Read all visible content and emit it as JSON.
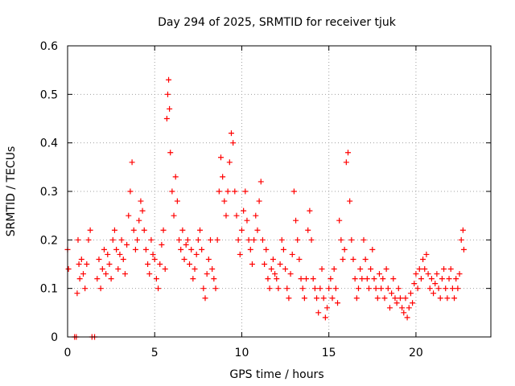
{
  "chart_data": {
    "type": "scatter",
    "title": "Day 294 of 2025, SRMTID for receiver tjuk",
    "xlabel": "GPS time / hours",
    "ylabel": "SRMTID / TECUs",
    "xlim": [
      0,
      24.3
    ],
    "ylim": [
      0,
      0.6
    ],
    "xticks": [
      0,
      5,
      10,
      15,
      20
    ],
    "yticks": [
      0,
      0.1,
      0.2,
      0.3,
      0.4,
      0.5,
      0.6
    ],
    "ytick_labels": [
      "0",
      "0.1",
      "0.2",
      "0.3",
      "0.4",
      "0.5",
      "0.6"
    ],
    "grid": true,
    "marker": "+",
    "color": "#ff0000",
    "series": [
      {
        "name": "SRMTID",
        "points": [
          [
            0.0,
            0.18
          ],
          [
            0.05,
            0.14
          ],
          [
            0.4,
            0.0
          ],
          [
            0.5,
            0.0
          ],
          [
            0.55,
            0.09
          ],
          [
            0.6,
            0.2
          ],
          [
            0.65,
            0.15
          ],
          [
            0.7,
            0.12
          ],
          [
            0.8,
            0.16
          ],
          [
            0.9,
            0.13
          ],
          [
            1.0,
            0.1
          ],
          [
            1.1,
            0.15
          ],
          [
            1.2,
            0.2
          ],
          [
            1.3,
            0.22
          ],
          [
            1.4,
            0.0
          ],
          [
            1.55,
            0.0
          ],
          [
            1.7,
            0.12
          ],
          [
            1.8,
            0.16
          ],
          [
            1.9,
            0.1
          ],
          [
            2.0,
            0.14
          ],
          [
            2.1,
            0.18
          ],
          [
            2.2,
            0.13
          ],
          [
            2.3,
            0.17
          ],
          [
            2.4,
            0.15
          ],
          [
            2.5,
            0.12
          ],
          [
            2.6,
            0.2
          ],
          [
            2.7,
            0.22
          ],
          [
            2.8,
            0.18
          ],
          [
            2.9,
            0.14
          ],
          [
            3.0,
            0.17
          ],
          [
            3.1,
            0.2
          ],
          [
            3.2,
            0.16
          ],
          [
            3.3,
            0.13
          ],
          [
            3.4,
            0.19
          ],
          [
            3.5,
            0.25
          ],
          [
            3.6,
            0.3
          ],
          [
            3.7,
            0.36
          ],
          [
            3.8,
            0.22
          ],
          [
            3.9,
            0.18
          ],
          [
            4.0,
            0.2
          ],
          [
            4.1,
            0.24
          ],
          [
            4.2,
            0.28
          ],
          [
            4.3,
            0.26
          ],
          [
            4.4,
            0.22
          ],
          [
            4.5,
            0.18
          ],
          [
            4.6,
            0.15
          ],
          [
            4.7,
            0.13
          ],
          [
            4.8,
            0.2
          ],
          [
            4.9,
            0.17
          ],
          [
            5.0,
            0.16
          ],
          [
            5.1,
            0.12
          ],
          [
            5.2,
            0.1
          ],
          [
            5.3,
            0.15
          ],
          [
            5.4,
            0.19
          ],
          [
            5.5,
            0.22
          ],
          [
            5.6,
            0.14
          ],
          [
            5.7,
            0.45
          ],
          [
            5.75,
            0.5
          ],
          [
            5.8,
            0.53
          ],
          [
            5.85,
            0.47
          ],
          [
            5.9,
            0.38
          ],
          [
            6.0,
            0.3
          ],
          [
            6.1,
            0.25
          ],
          [
            6.2,
            0.33
          ],
          [
            6.3,
            0.28
          ],
          [
            6.4,
            0.2
          ],
          [
            6.5,
            0.18
          ],
          [
            6.6,
            0.22
          ],
          [
            6.7,
            0.16
          ],
          [
            6.8,
            0.19
          ],
          [
            6.9,
            0.2
          ],
          [
            7.0,
            0.15
          ],
          [
            7.1,
            0.18
          ],
          [
            7.2,
            0.12
          ],
          [
            7.3,
            0.14
          ],
          [
            7.4,
            0.17
          ],
          [
            7.5,
            0.2
          ],
          [
            7.6,
            0.22
          ],
          [
            7.7,
            0.18
          ],
          [
            7.8,
            0.1
          ],
          [
            7.9,
            0.08
          ],
          [
            8.0,
            0.13
          ],
          [
            8.1,
            0.16
          ],
          [
            8.2,
            0.2
          ],
          [
            8.3,
            0.14
          ],
          [
            8.4,
            0.12
          ],
          [
            8.5,
            0.1
          ],
          [
            8.6,
            0.2
          ],
          [
            8.7,
            0.3
          ],
          [
            8.8,
            0.37
          ],
          [
            8.9,
            0.33
          ],
          [
            9.0,
            0.28
          ],
          [
            9.1,
            0.25
          ],
          [
            9.2,
            0.3
          ],
          [
            9.3,
            0.36
          ],
          [
            9.4,
            0.42
          ],
          [
            9.5,
            0.4
          ],
          [
            9.6,
            0.3
          ],
          [
            9.7,
            0.25
          ],
          [
            9.8,
            0.2
          ],
          [
            9.9,
            0.17
          ],
          [
            10.0,
            0.22
          ],
          [
            10.1,
            0.26
          ],
          [
            10.2,
            0.3
          ],
          [
            10.3,
            0.24
          ],
          [
            10.4,
            0.2
          ],
          [
            10.5,
            0.18
          ],
          [
            10.6,
            0.15
          ],
          [
            10.7,
            0.2
          ],
          [
            10.8,
            0.25
          ],
          [
            10.9,
            0.22
          ],
          [
            11.0,
            0.28
          ],
          [
            11.1,
            0.32
          ],
          [
            11.2,
            0.2
          ],
          [
            11.3,
            0.15
          ],
          [
            11.4,
            0.18
          ],
          [
            11.5,
            0.12
          ],
          [
            11.6,
            0.1
          ],
          [
            11.7,
            0.14
          ],
          [
            11.8,
            0.16
          ],
          [
            11.9,
            0.13
          ],
          [
            12.0,
            0.12
          ],
          [
            12.1,
            0.1
          ],
          [
            12.2,
            0.15
          ],
          [
            12.3,
            0.2
          ],
          [
            12.4,
            0.18
          ],
          [
            12.5,
            0.14
          ],
          [
            12.6,
            0.1
          ],
          [
            12.7,
            0.08
          ],
          [
            12.8,
            0.13
          ],
          [
            12.9,
            0.17
          ],
          [
            13.0,
            0.3
          ],
          [
            13.1,
            0.24
          ],
          [
            13.2,
            0.2
          ],
          [
            13.3,
            0.16
          ],
          [
            13.4,
            0.12
          ],
          [
            13.5,
            0.1
          ],
          [
            13.6,
            0.08
          ],
          [
            13.7,
            0.12
          ],
          [
            13.8,
            0.22
          ],
          [
            13.9,
            0.26
          ],
          [
            14.0,
            0.2
          ],
          [
            14.1,
            0.12
          ],
          [
            14.2,
            0.1
          ],
          [
            14.3,
            0.08
          ],
          [
            14.4,
            0.05
          ],
          [
            14.5,
            0.1
          ],
          [
            14.6,
            0.14
          ],
          [
            14.7,
            0.08
          ],
          [
            14.8,
            0.04
          ],
          [
            14.9,
            0.06
          ],
          [
            15.0,
            0.1
          ],
          [
            15.1,
            0.12
          ],
          [
            15.2,
            0.08
          ],
          [
            15.3,
            0.14
          ],
          [
            15.4,
            0.1
          ],
          [
            15.5,
            0.07
          ],
          [
            15.6,
            0.24
          ],
          [
            15.7,
            0.2
          ],
          [
            15.8,
            0.16
          ],
          [
            15.9,
            0.18
          ],
          [
            16.0,
            0.36
          ],
          [
            16.1,
            0.38
          ],
          [
            16.2,
            0.28
          ],
          [
            16.3,
            0.2
          ],
          [
            16.4,
            0.16
          ],
          [
            16.5,
            0.12
          ],
          [
            16.6,
            0.08
          ],
          [
            16.7,
            0.1
          ],
          [
            16.8,
            0.14
          ],
          [
            16.9,
            0.12
          ],
          [
            17.0,
            0.2
          ],
          [
            17.1,
            0.16
          ],
          [
            17.2,
            0.12
          ],
          [
            17.3,
            0.1
          ],
          [
            17.4,
            0.14
          ],
          [
            17.5,
            0.18
          ],
          [
            17.6,
            0.12
          ],
          [
            17.7,
            0.1
          ],
          [
            17.8,
            0.08
          ],
          [
            17.9,
            0.13
          ],
          [
            18.0,
            0.1
          ],
          [
            18.1,
            0.12
          ],
          [
            18.2,
            0.08
          ],
          [
            18.3,
            0.14
          ],
          [
            18.4,
            0.1
          ],
          [
            18.5,
            0.06
          ],
          [
            18.6,
            0.09
          ],
          [
            18.7,
            0.12
          ],
          [
            18.8,
            0.08
          ],
          [
            18.9,
            0.07
          ],
          [
            19.0,
            0.1
          ],
          [
            19.1,
            0.08
          ],
          [
            19.2,
            0.06
          ],
          [
            19.3,
            0.05
          ],
          [
            19.4,
            0.08
          ],
          [
            19.5,
            0.04
          ],
          [
            19.6,
            0.06
          ],
          [
            19.7,
            0.09
          ],
          [
            19.8,
            0.07
          ],
          [
            19.9,
            0.11
          ],
          [
            20.0,
            0.13
          ],
          [
            20.1,
            0.1
          ],
          [
            20.2,
            0.14
          ],
          [
            20.3,
            0.12
          ],
          [
            20.4,
            0.16
          ],
          [
            20.5,
            0.14
          ],
          [
            20.6,
            0.17
          ],
          [
            20.7,
            0.13
          ],
          [
            20.8,
            0.1
          ],
          [
            20.9,
            0.12
          ],
          [
            21.0,
            0.09
          ],
          [
            21.1,
            0.11
          ],
          [
            21.2,
            0.13
          ],
          [
            21.3,
            0.1
          ],
          [
            21.4,
            0.08
          ],
          [
            21.5,
            0.12
          ],
          [
            21.6,
            0.14
          ],
          [
            21.7,
            0.1
          ],
          [
            21.8,
            0.08
          ],
          [
            21.9,
            0.12
          ],
          [
            22.0,
            0.14
          ],
          [
            22.1,
            0.1
          ],
          [
            22.2,
            0.08
          ],
          [
            22.3,
            0.12
          ],
          [
            22.4,
            0.1
          ],
          [
            22.5,
            0.13
          ],
          [
            22.6,
            0.2
          ],
          [
            22.7,
            0.22
          ],
          [
            22.75,
            0.18
          ]
        ]
      }
    ]
  }
}
